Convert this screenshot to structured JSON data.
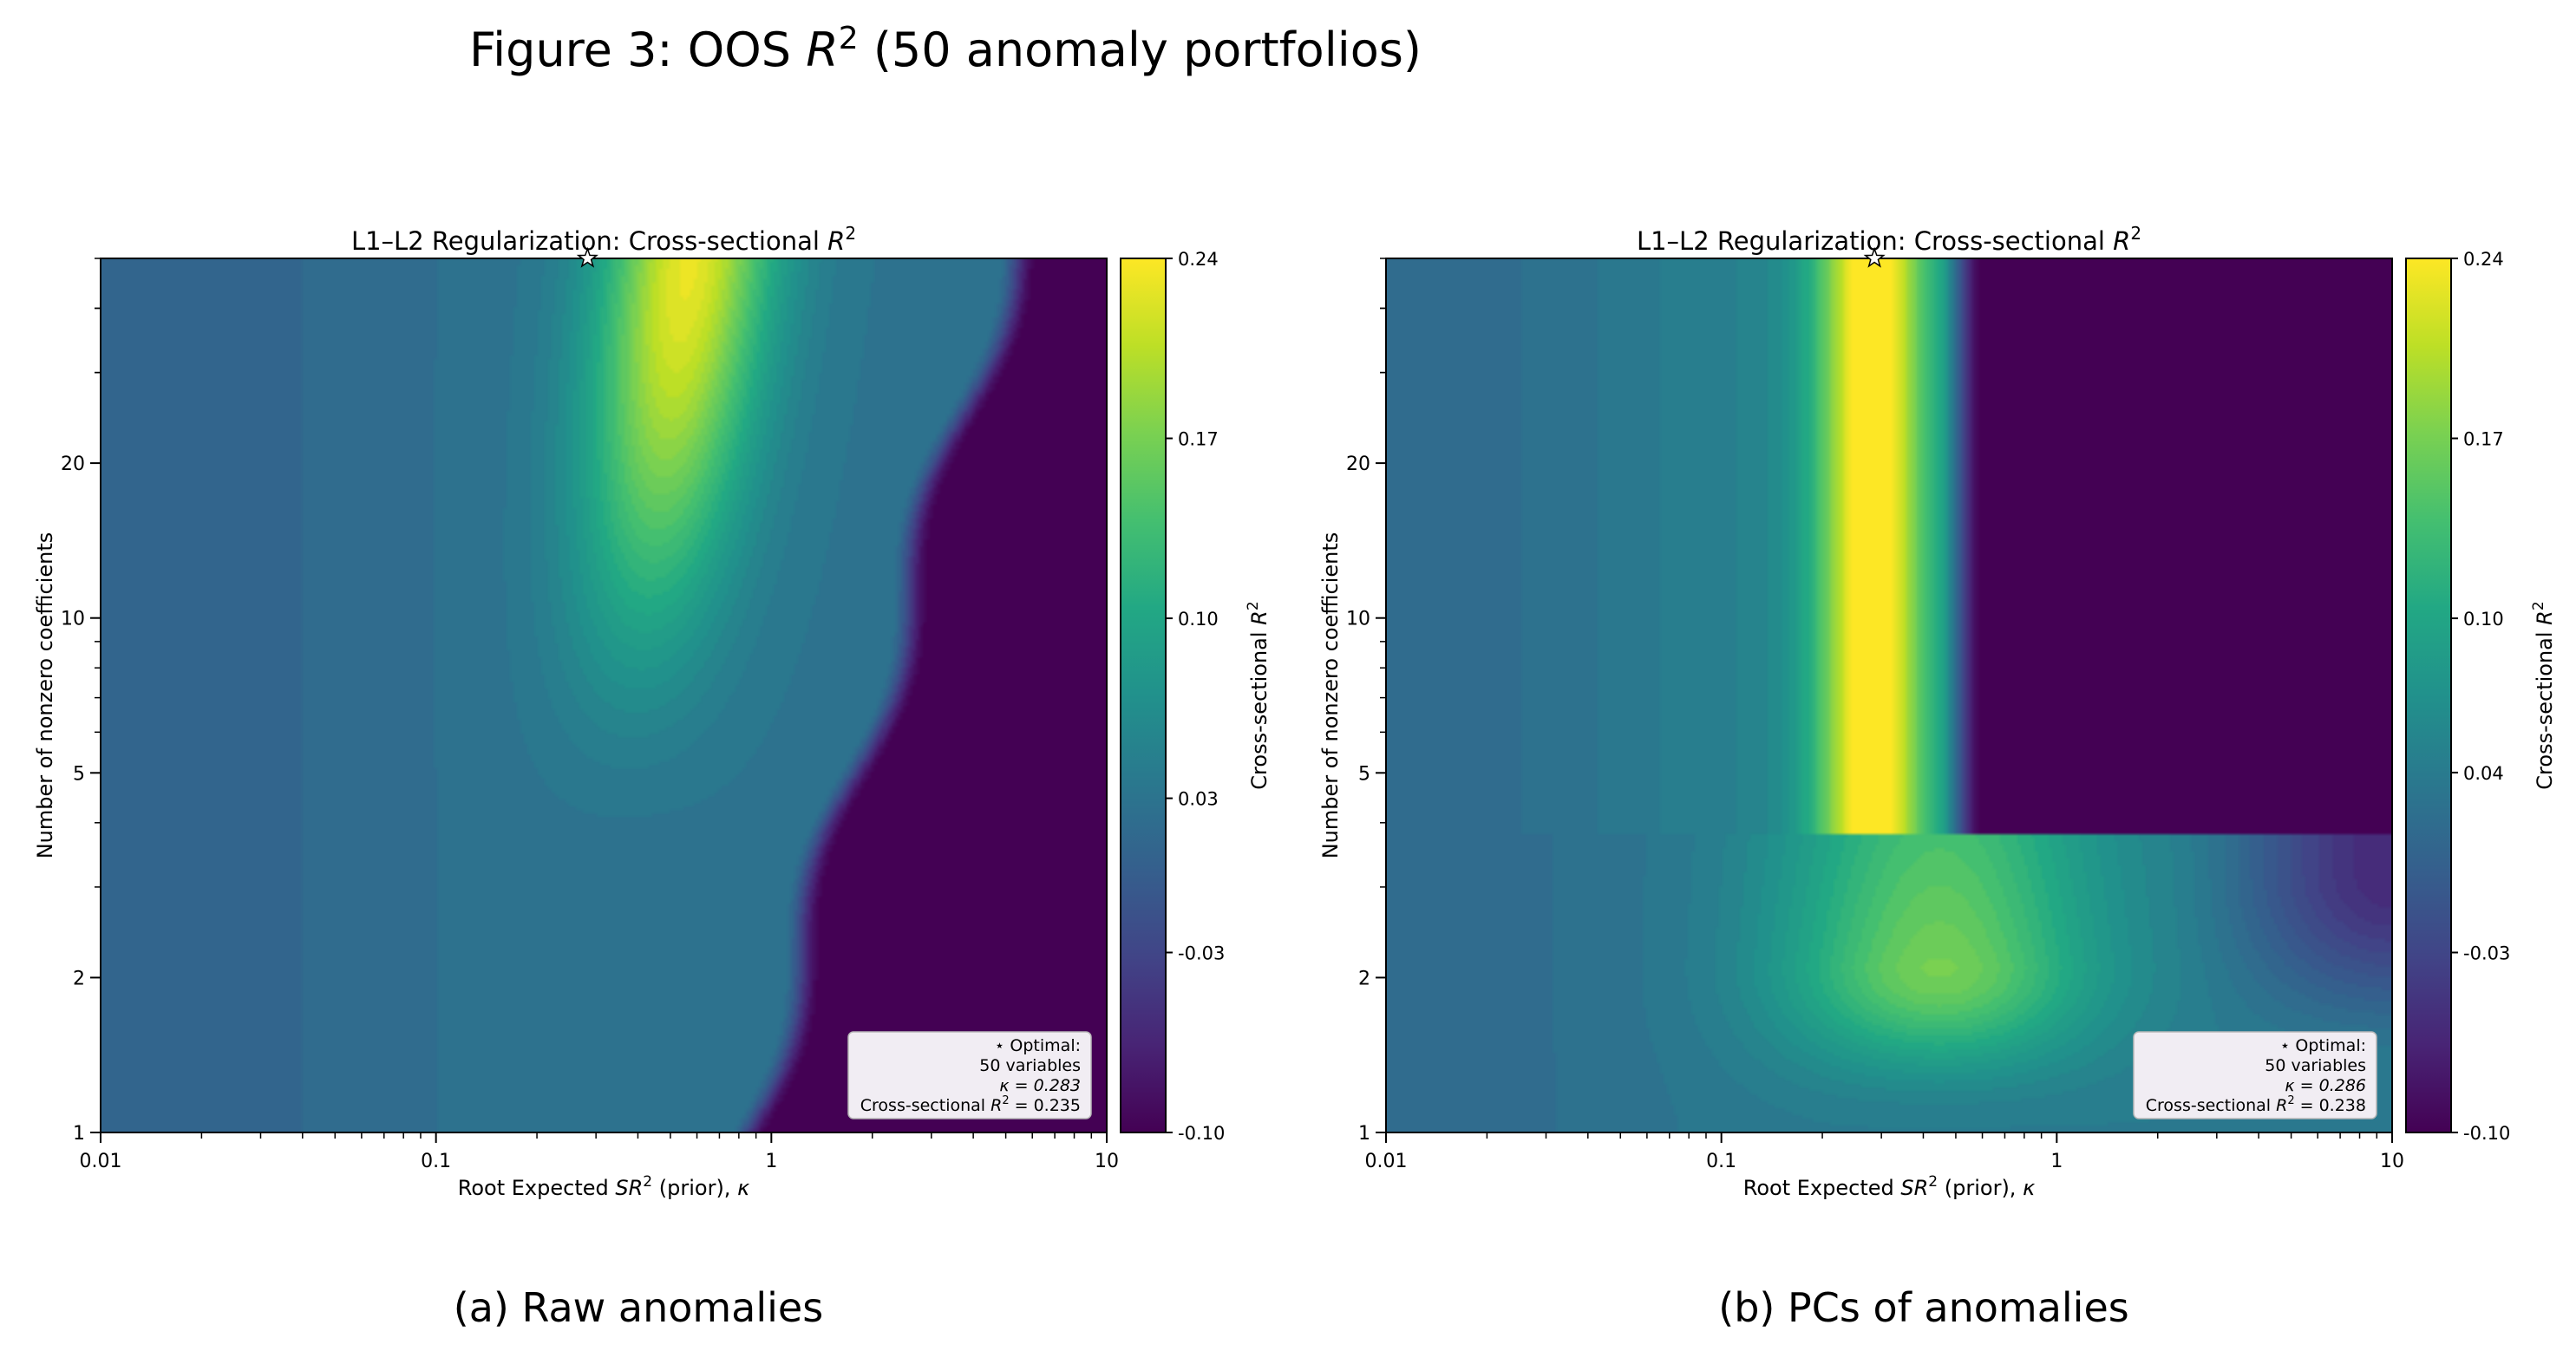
{
  "figure": {
    "title_prefix": "Figure 3: OOS ",
    "title_var": "R",
    "title_sup": "2",
    "title_suffix": " (50 anomaly portfolios)"
  },
  "chart_data": [
    {
      "type": "heatmap",
      "caption": "(a) Raw anomalies",
      "title_prefix": "L1–L2 Regularization: Cross-sectional ",
      "title_var": "R",
      "title_sup": "2",
      "xlabel_prefix": "Root Expected ",
      "xlabel_var": "SR",
      "xlabel_sup": "2",
      "xlabel_suffix": " (prior), ",
      "xlabel_kappa": "κ",
      "ylabel": "Number of nonzero coefficients",
      "x_scale": "log",
      "y_scale": "log",
      "xlim": [
        0.01,
        10
      ],
      "ylim": [
        1,
        50
      ],
      "x_ticks": [
        {
          "v": 0.01,
          "label": "0.01"
        },
        {
          "v": 0.1,
          "label": "0.1"
        },
        {
          "v": 1,
          "label": "1"
        },
        {
          "v": 10,
          "label": "10"
        }
      ],
      "y_ticks": [
        {
          "v": 1,
          "label": "1"
        },
        {
          "v": 2,
          "label": "2"
        },
        {
          "v": 5,
          "label": "5"
        },
        {
          "v": 10,
          "label": "10"
        },
        {
          "v": 20,
          "label": "20"
        }
      ],
      "colormap": "viridis",
      "colorbar": {
        "label_prefix": "Cross-sectional ",
        "label_var": "R",
        "label_sup": "2",
        "vmin": -0.1,
        "vmax": 0.24,
        "ticks": [
          {
            "v": 0.24,
            "label": "0.24"
          },
          {
            "v": 0.17,
            "label": "0.17"
          },
          {
            "v": 0.1,
            "label": "0.10"
          },
          {
            "v": 0.03,
            "label": "0.03"
          },
          {
            "v": -0.03,
            "label": "-0.03"
          },
          {
            "v": -0.1,
            "label": "-0.10"
          }
        ]
      },
      "optimum": {
        "kappa": 0.283,
        "n": 50,
        "r2": 0.235
      },
      "legend": {
        "position": "bottom-right",
        "line1": "⋆ Optimal:",
        "line2": "50 variables",
        "line3": "κ = 0.283",
        "line4_prefix": "Cross-sectional ",
        "line4_var": "R",
        "line4_sup": "2",
        "line4_suffix": " = 0.235"
      }
    },
    {
      "type": "heatmap",
      "caption": "(b) PCs of anomalies",
      "title_prefix": "L1–L2 Regularization: Cross-sectional ",
      "title_var": "R",
      "title_sup": "2",
      "xlabel_prefix": "Root Expected ",
      "xlabel_var": "SR",
      "xlabel_sup": "2",
      "xlabel_suffix": " (prior), ",
      "xlabel_kappa": "κ",
      "ylabel": "Number of nonzero coefficients",
      "x_scale": "log",
      "y_scale": "log",
      "xlim": [
        0.01,
        10
      ],
      "ylim": [
        1,
        50
      ],
      "x_ticks": [
        {
          "v": 0.01,
          "label": "0.01"
        },
        {
          "v": 0.1,
          "label": "0.1"
        },
        {
          "v": 1,
          "label": "1"
        },
        {
          "v": 10,
          "label": "10"
        }
      ],
      "y_ticks": [
        {
          "v": 1,
          "label": "1"
        },
        {
          "v": 2,
          "label": "2"
        },
        {
          "v": 5,
          "label": "5"
        },
        {
          "v": 10,
          "label": "10"
        },
        {
          "v": 20,
          "label": "20"
        }
      ],
      "colormap": "viridis",
      "colorbar": {
        "label_prefix": "Cross-sectional ",
        "label_var": "R",
        "label_sup": "2",
        "vmin": -0.1,
        "vmax": 0.24,
        "ticks": [
          {
            "v": 0.24,
            "label": "0.24"
          },
          {
            "v": 0.17,
            "label": "0.17"
          },
          {
            "v": 0.1,
            "label": "0.10"
          },
          {
            "v": 0.04,
            "label": "0.04"
          },
          {
            "v": -0.03,
            "label": "-0.03"
          },
          {
            "v": -0.1,
            "label": "-0.10"
          }
        ]
      },
      "optimum": {
        "kappa": 0.286,
        "n": 50,
        "r2": 0.238
      },
      "legend": {
        "position": "bottom-right",
        "line1": "⋆ Optimal:",
        "line2": "50 variables",
        "line3": "κ = 0.286",
        "line4_prefix": "Cross-sectional ",
        "line4_var": "R",
        "line4_sup": "2",
        "line4_suffix": " = 0.238"
      }
    }
  ]
}
